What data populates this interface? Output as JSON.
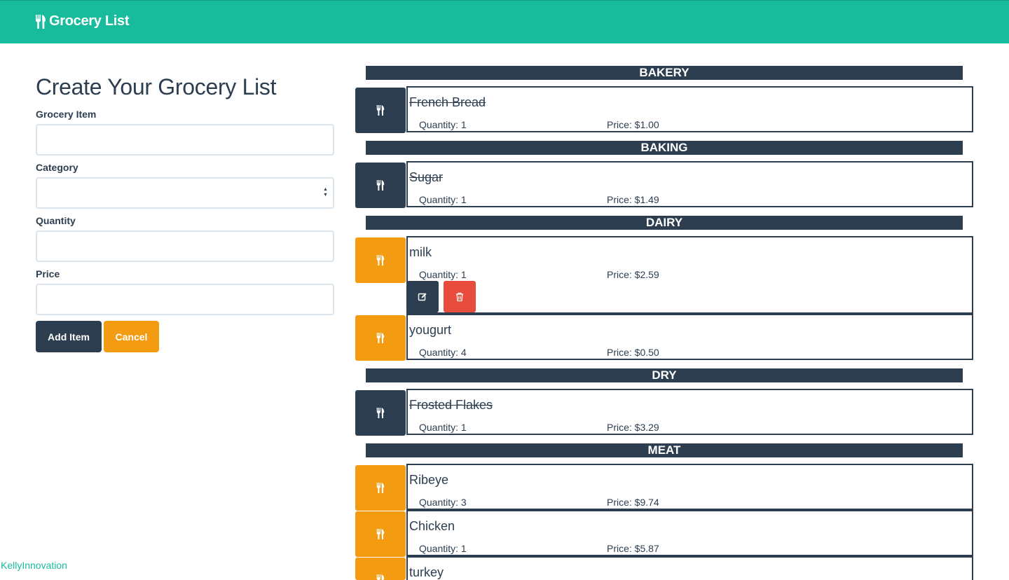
{
  "app": {
    "brand": "Grocery List",
    "footer_link": "KellyInnovation"
  },
  "form": {
    "title": "Create Your Grocery List",
    "fields": {
      "item": {
        "label": "Grocery Item",
        "value": ""
      },
      "category": {
        "label": "Category",
        "value": ""
      },
      "quantity": {
        "label": "Quantity",
        "value": ""
      },
      "price": {
        "label": "Price",
        "value": ""
      }
    },
    "add_label": "Add Item",
    "cancel_label": "Cancel"
  },
  "list": {
    "categories": [
      "BAKERY",
      "BAKING",
      "DAIRY",
      "DRY",
      "MEAT"
    ],
    "items": [
      {
        "name": "French Bread",
        "quantity": "Quantity: 1",
        "price": "Price: $1.00",
        "completed": true
      },
      {
        "name": "Sugar",
        "quantity": "Quantity: 1",
        "price": "Price: $1.49",
        "completed": true
      },
      {
        "name": "milk",
        "quantity": "Quantity: 1",
        "price": "Price: $2.59",
        "completed": false
      },
      {
        "name": "yougurt",
        "quantity": "Quantity: 4",
        "price": "Price: $0.50",
        "completed": false
      },
      {
        "name": "Frosted Flakes",
        "quantity": "Quantity: 1",
        "price": "Price: $3.29",
        "completed": true
      },
      {
        "name": "Ribeye",
        "quantity": "Quantity: 3",
        "price": "Price: $9.74",
        "completed": false
      },
      {
        "name": "Chicken",
        "quantity": "Quantity: 1",
        "price": "Price: $5.87",
        "completed": false
      },
      {
        "name": "turkey",
        "quantity": "",
        "price": "",
        "completed": false
      }
    ]
  },
  "icons": {
    "brand": "utensils-icon",
    "item": "utensils-icon",
    "edit": "edit-icon",
    "delete": "trash-icon",
    "select": "select-arrows-icon"
  },
  "colors": {
    "navbar": "#18bc9c",
    "primary": "#2c3e50",
    "warning": "#f39c12",
    "danger": "#e74c3c",
    "link": "#18bc9c"
  }
}
